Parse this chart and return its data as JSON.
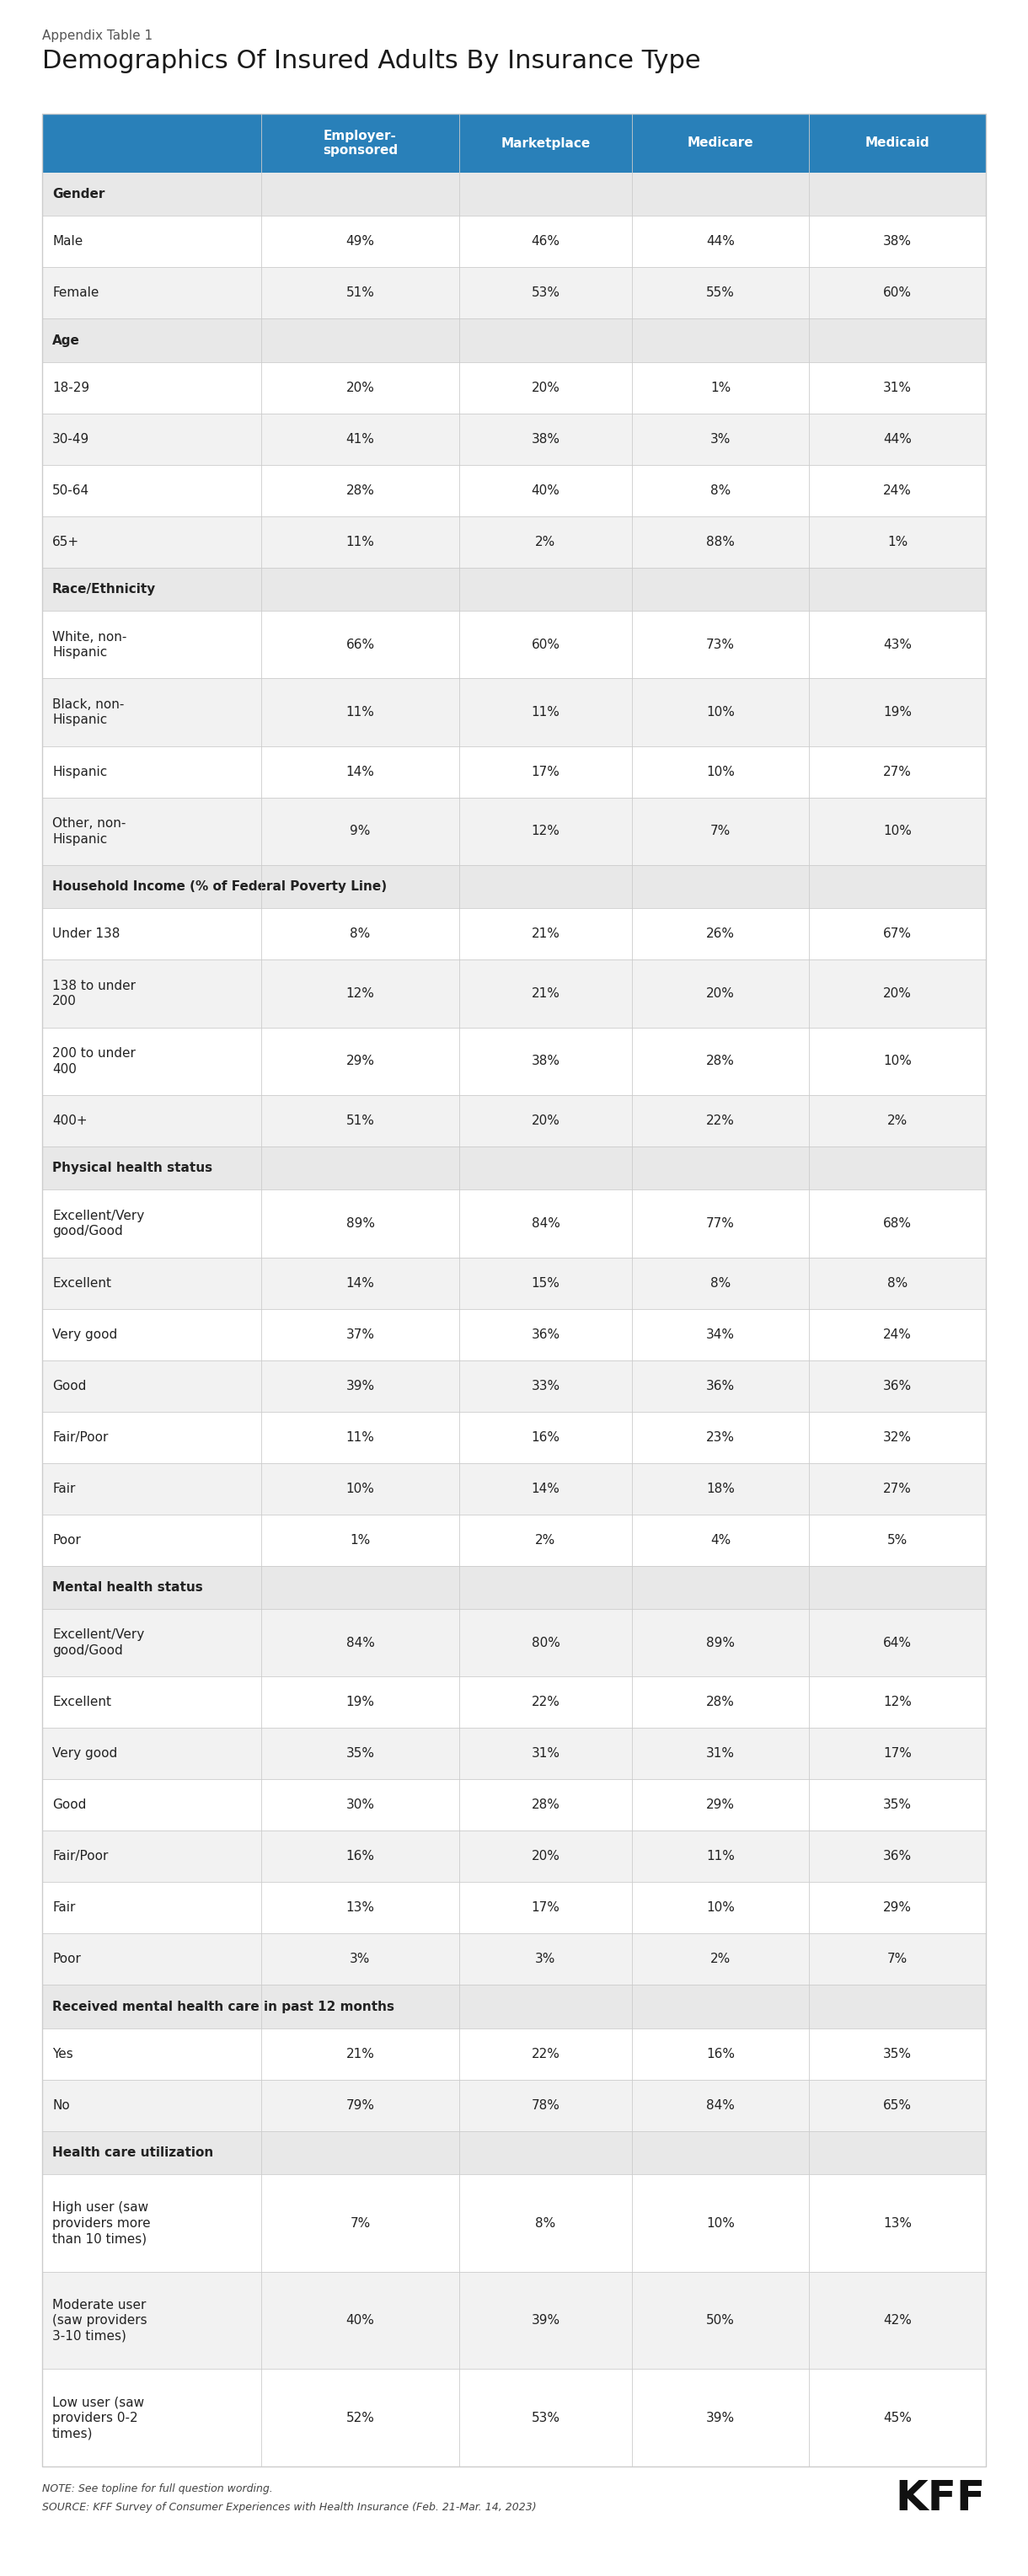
{
  "appendix_label": "Appendix Table 1",
  "title": "Demographics Of Insured Adults By Insurance Type",
  "header_labels": [
    "Employer-\nsponsored",
    "Marketplace",
    "Medicare",
    "Medicaid"
  ],
  "header_bg": "#2980b9",
  "rows": [
    {
      "label": "Gender",
      "is_section": true,
      "values": [
        "",
        "",
        "",
        ""
      ]
    },
    {
      "label": "Male",
      "is_section": false,
      "values": [
        "49%",
        "46%",
        "44%",
        "38%"
      ]
    },
    {
      "label": "Female",
      "is_section": false,
      "values": [
        "51%",
        "53%",
        "55%",
        "60%"
      ]
    },
    {
      "label": "Age",
      "is_section": true,
      "values": [
        "",
        "",
        "",
        ""
      ]
    },
    {
      "label": "18-29",
      "is_section": false,
      "values": [
        "20%",
        "20%",
        "1%",
        "31%"
      ]
    },
    {
      "label": "30-49",
      "is_section": false,
      "values": [
        "41%",
        "38%",
        "3%",
        "44%"
      ]
    },
    {
      "label": "50-64",
      "is_section": false,
      "values": [
        "28%",
        "40%",
        "8%",
        "24%"
      ]
    },
    {
      "label": "65+",
      "is_section": false,
      "values": [
        "11%",
        "2%",
        "88%",
        "1%"
      ]
    },
    {
      "label": "Race/Ethnicity",
      "is_section": true,
      "values": [
        "",
        "",
        "",
        ""
      ]
    },
    {
      "label": "White, non-\nHispanic",
      "is_section": false,
      "values": [
        "66%",
        "60%",
        "73%",
        "43%"
      ]
    },
    {
      "label": "Black, non-\nHispanic",
      "is_section": false,
      "values": [
        "11%",
        "11%",
        "10%",
        "19%"
      ]
    },
    {
      "label": "Hispanic",
      "is_section": false,
      "values": [
        "14%",
        "17%",
        "10%",
        "27%"
      ]
    },
    {
      "label": "Other, non-\nHispanic",
      "is_section": false,
      "values": [
        "9%",
        "12%",
        "7%",
        "10%"
      ]
    },
    {
      "label": "Household Income (% of Federal Poverty Line)",
      "is_section": true,
      "values": [
        "",
        "",
        "",
        ""
      ]
    },
    {
      "label": "Under 138",
      "is_section": false,
      "values": [
        "8%",
        "21%",
        "26%",
        "67%"
      ]
    },
    {
      "label": "138 to under\n200",
      "is_section": false,
      "values": [
        "12%",
        "21%",
        "20%",
        "20%"
      ]
    },
    {
      "label": "200 to under\n400",
      "is_section": false,
      "values": [
        "29%",
        "38%",
        "28%",
        "10%"
      ]
    },
    {
      "label": "400+",
      "is_section": false,
      "values": [
        "51%",
        "20%",
        "22%",
        "2%"
      ]
    },
    {
      "label": "Physical health status",
      "is_section": true,
      "values": [
        "",
        "",
        "",
        ""
      ]
    },
    {
      "label": "Excellent/Very\ngood/Good",
      "is_section": false,
      "values": [
        "89%",
        "84%",
        "77%",
        "68%"
      ]
    },
    {
      "label": "Excellent",
      "is_section": false,
      "values": [
        "14%",
        "15%",
        "8%",
        "8%"
      ]
    },
    {
      "label": "Very good",
      "is_section": false,
      "values": [
        "37%",
        "36%",
        "34%",
        "24%"
      ]
    },
    {
      "label": "Good",
      "is_section": false,
      "values": [
        "39%",
        "33%",
        "36%",
        "36%"
      ]
    },
    {
      "label": "Fair/Poor",
      "is_section": false,
      "values": [
        "11%",
        "16%",
        "23%",
        "32%"
      ]
    },
    {
      "label": "Fair",
      "is_section": false,
      "values": [
        "10%",
        "14%",
        "18%",
        "27%"
      ]
    },
    {
      "label": "Poor",
      "is_section": false,
      "values": [
        "1%",
        "2%",
        "4%",
        "5%"
      ]
    },
    {
      "label": "Mental health status",
      "is_section": true,
      "values": [
        "",
        "",
        "",
        ""
      ]
    },
    {
      "label": "Excellent/Very\ngood/Good",
      "is_section": false,
      "values": [
        "84%",
        "80%",
        "89%",
        "64%"
      ]
    },
    {
      "label": "Excellent",
      "is_section": false,
      "values": [
        "19%",
        "22%",
        "28%",
        "12%"
      ]
    },
    {
      "label": "Very good",
      "is_section": false,
      "values": [
        "35%",
        "31%",
        "31%",
        "17%"
      ]
    },
    {
      "label": "Good",
      "is_section": false,
      "values": [
        "30%",
        "28%",
        "29%",
        "35%"
      ]
    },
    {
      "label": "Fair/Poor",
      "is_section": false,
      "values": [
        "16%",
        "20%",
        "11%",
        "36%"
      ]
    },
    {
      "label": "Fair",
      "is_section": false,
      "values": [
        "13%",
        "17%",
        "10%",
        "29%"
      ]
    },
    {
      "label": "Poor",
      "is_section": false,
      "values": [
        "3%",
        "3%",
        "2%",
        "7%"
      ]
    },
    {
      "label": "Received mental health care in past 12 months",
      "is_section": true,
      "values": [
        "",
        "",
        "",
        ""
      ]
    },
    {
      "label": "Yes",
      "is_section": false,
      "values": [
        "21%",
        "22%",
        "16%",
        "35%"
      ]
    },
    {
      "label": "No",
      "is_section": false,
      "values": [
        "79%",
        "78%",
        "84%",
        "65%"
      ]
    },
    {
      "label": "Health care utilization",
      "is_section": true,
      "values": [
        "",
        "",
        "",
        ""
      ]
    },
    {
      "label": "High user (saw\nproviders more\nthan 10 times)",
      "is_section": false,
      "values": [
        "7%",
        "8%",
        "10%",
        "13%"
      ]
    },
    {
      "label": "Moderate user\n(saw providers\n3-10 times)",
      "is_section": false,
      "values": [
        "40%",
        "39%",
        "50%",
        "42%"
      ]
    },
    {
      "label": "Low user (saw\nproviders 0-2\ntimes)",
      "is_section": false,
      "values": [
        "52%",
        "53%",
        "39%",
        "45%"
      ]
    }
  ],
  "note": "NOTE: See topline for full question wording.",
  "source": "SOURCE: KFF Survey of Consumer Experiences with Health Insurance (Feb. 21-Mar. 14, 2023)",
  "kff_logo": "KFF",
  "bg_section": "#e8e8e8",
  "bg_white": "#ffffff",
  "border_color": "#cccccc",
  "text_dark": "#222222",
  "text_mid": "#444444"
}
